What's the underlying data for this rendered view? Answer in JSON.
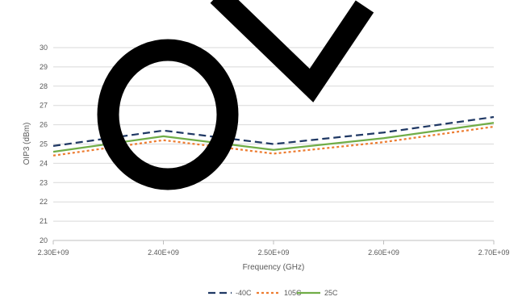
{
  "chart_data": {
    "type": "line",
    "title": "",
    "xlabel": "Frequency (GHz)",
    "ylabel": "OIP3 (dBm)",
    "x": [
      2300000000,
      2400000000,
      2500000000,
      2600000000,
      2700000000
    ],
    "x_tick_labels": [
      "2.30E+09",
      "2.40E+09",
      "2.50E+09",
      "2.60E+09",
      "2.70E+09"
    ],
    "xlim": [
      2300000000,
      2700000000
    ],
    "ylim": [
      20,
      30
    ],
    "y_ticks": [
      "20",
      "21",
      "22",
      "23",
      "24",
      "25",
      "26",
      "27",
      "28",
      "29",
      "30"
    ],
    "grid": "horizontal",
    "legend_position": "bottom",
    "series": [
      {
        "name": "-40C",
        "values": [
          24.9,
          25.7,
          25.0,
          25.6,
          26.4
        ],
        "color": "#1f3864",
        "style": "dashed"
      },
      {
        "name": "105C",
        "values": [
          24.4,
          25.2,
          24.5,
          25.1,
          25.9
        ],
        "color": "#ed7d31",
        "style": "dotted"
      },
      {
        "name": "25C",
        "values": [
          24.6,
          25.4,
          24.7,
          25.3,
          26.1
        ],
        "color": "#70ad47",
        "style": "solid"
      }
    ],
    "overlay": {
      "description": "large black hand-drawn letters",
      "color": "#000000"
    }
  }
}
